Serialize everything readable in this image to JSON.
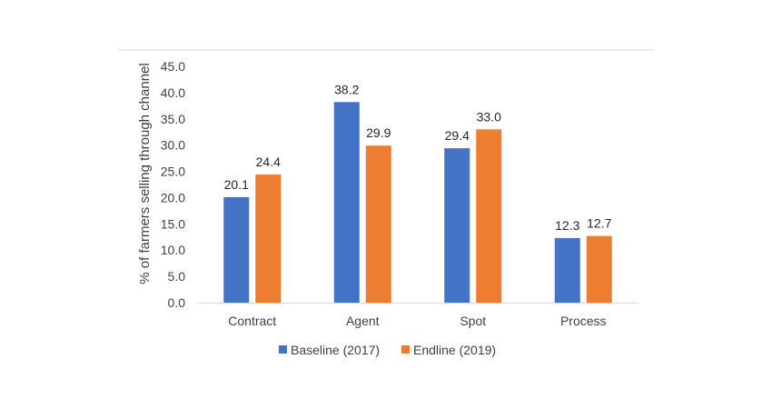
{
  "chart_data": {
    "type": "bar",
    "title": "",
    "xlabel": "",
    "ylabel": "% of farmers selling through channel",
    "ylim": [
      0,
      45
    ],
    "yticks": [
      0,
      5,
      10,
      15,
      20,
      25,
      30,
      35,
      40,
      45
    ],
    "ytick_labels": [
      "0.0",
      "5.0",
      "10.0",
      "15.0",
      "20.0",
      "25.0",
      "30.0",
      "35.0",
      "40.0",
      "45.0"
    ],
    "categories": [
      "Contract",
      "Agent",
      "Spot",
      "Process"
    ],
    "series": [
      {
        "name": "Baseline (2017)",
        "color": "#4472C4",
        "values": [
          20.1,
          38.2,
          29.4,
          12.3
        ],
        "labels": [
          "20.1",
          "38.2",
          "29.4",
          "12.3"
        ]
      },
      {
        "name": "Endline (2019)",
        "color": "#ED7D31",
        "values": [
          24.4,
          29.9,
          33.0,
          12.7
        ],
        "labels": [
          "24.4",
          "29.9",
          "33.0",
          "12.7"
        ]
      }
    ],
    "legend_position": "bottom",
    "grid": false
  }
}
